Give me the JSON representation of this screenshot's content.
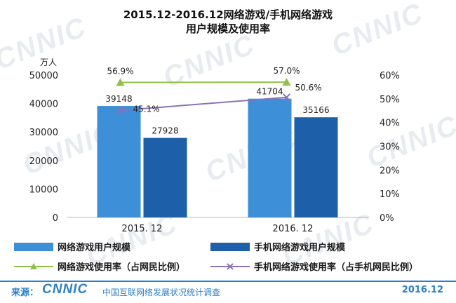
{
  "title_line1": "2015.12-2016.12网络游戏/手机网络游戏",
  "title_line2": "用户规模及使用率",
  "watermark_text": "CNNIC",
  "colors": {
    "bar_series1": "#3d8fd8",
    "bar_series2": "#1d5fa8",
    "line_series1": "#8fc04a",
    "line_series2": "#8a72b8",
    "footer": "#2d7fc6"
  },
  "chart_data": {
    "type": "bar",
    "categories": [
      "2015. 12",
      "2016. 12"
    ],
    "y_left_unit": "万人",
    "y_left_ticks": [
      "50000",
      "40000",
      "30000",
      "20000",
      "10000",
      "0"
    ],
    "y_right_ticks": [
      "60%",
      "50%",
      "40%",
      "30%",
      "20%",
      "10%",
      "0%"
    ],
    "ylim_left": [
      0,
      50000
    ],
    "ylim_right": [
      0,
      60
    ],
    "grid": false,
    "legend_position": "bottom",
    "bar_series": [
      {
        "name": "网络游戏用户规模",
        "values": [
          39148,
          41704
        ],
        "labels": [
          "39148",
          "41704"
        ]
      },
      {
        "name": "手机网络游戏用户规模",
        "values": [
          27928,
          35166
        ],
        "labels": [
          "27928",
          "35166"
        ]
      }
    ],
    "line_series": [
      {
        "name": "网络游戏使用率（占网民比例）",
        "values": [
          56.9,
          57.0
        ],
        "labels": [
          "56.9%",
          "57.0%"
        ],
        "marker": "triangle"
      },
      {
        "name": "手机网络游戏使用率（占手机网民比例）",
        "values": [
          45.1,
          50.6
        ],
        "labels": [
          "45.1%",
          "50.6%"
        ],
        "marker": "x"
      }
    ]
  },
  "footer": {
    "source_label": "来源：",
    "logo": "CNNIC",
    "org": "中国互联网络发展状况统计调查",
    "date": "2016.12"
  }
}
